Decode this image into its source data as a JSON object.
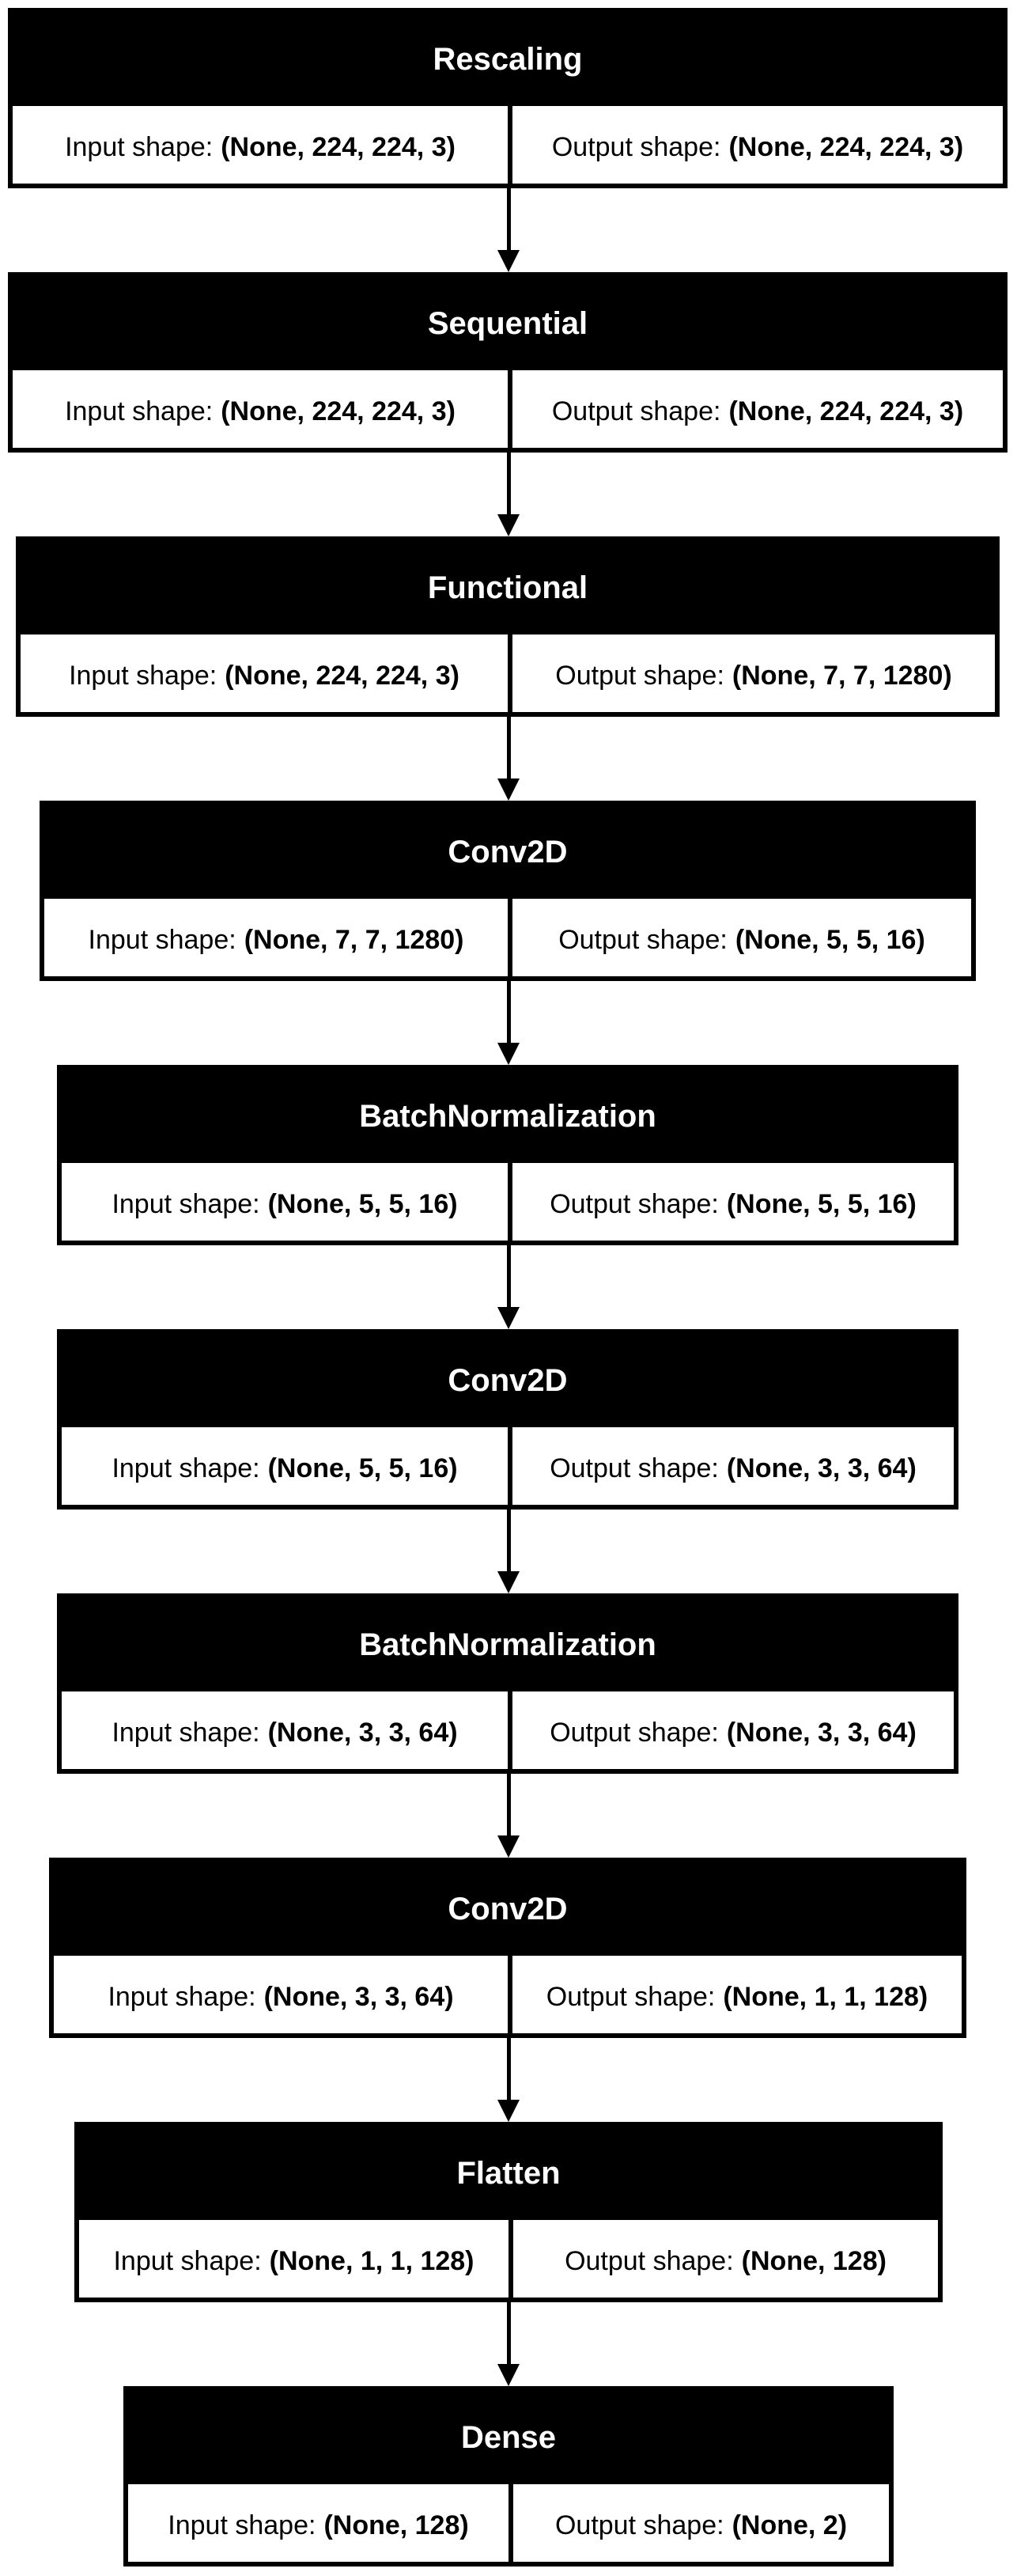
{
  "diagram": {
    "type": "keras-model-plot",
    "layers": [
      {
        "name": "Rescaling",
        "input_label": "Input shape:",
        "input_shape": "(None, 224, 224, 3)",
        "output_label": "Output shape:",
        "output_shape": "(None, 224, 224, 3)"
      },
      {
        "name": "Sequential",
        "input_label": "Input shape:",
        "input_shape": "(None, 224, 224, 3)",
        "output_label": "Output shape:",
        "output_shape": "(None, 224, 224, 3)"
      },
      {
        "name": "Functional",
        "input_label": "Input shape:",
        "input_shape": "(None, 224, 224, 3)",
        "output_label": "Output shape:",
        "output_shape": "(None, 7, 7, 1280)"
      },
      {
        "name": "Conv2D",
        "input_label": "Input shape:",
        "input_shape": "(None, 7, 7, 1280)",
        "output_label": "Output shape:",
        "output_shape": "(None, 5, 5, 16)"
      },
      {
        "name": "BatchNormalization",
        "input_label": "Input shape:",
        "input_shape": "(None, 5, 5, 16)",
        "output_label": "Output shape:",
        "output_shape": "(None, 5, 5, 16)"
      },
      {
        "name": "Conv2D",
        "input_label": "Input shape:",
        "input_shape": "(None, 5, 5, 16)",
        "output_label": "Output shape:",
        "output_shape": "(None, 3, 3, 64)"
      },
      {
        "name": "BatchNormalization",
        "input_label": "Input shape:",
        "input_shape": "(None, 3, 3, 64)",
        "output_label": "Output shape:",
        "output_shape": "(None, 3, 3, 64)"
      },
      {
        "name": "Conv2D",
        "input_label": "Input shape:",
        "input_shape": "(None, 3, 3, 64)",
        "output_label": "Output shape:",
        "output_shape": "(None, 1, 1, 128)"
      },
      {
        "name": "Flatten",
        "input_label": "Input shape:",
        "input_shape": "(None, 1, 1, 128)",
        "output_label": "Output shape:",
        "output_shape": "(None, 128)"
      },
      {
        "name": "Dense",
        "input_label": "Input shape:",
        "input_shape": "(None, 128)",
        "output_label": "Output shape:",
        "output_shape": "(None, 2)"
      }
    ]
  }
}
